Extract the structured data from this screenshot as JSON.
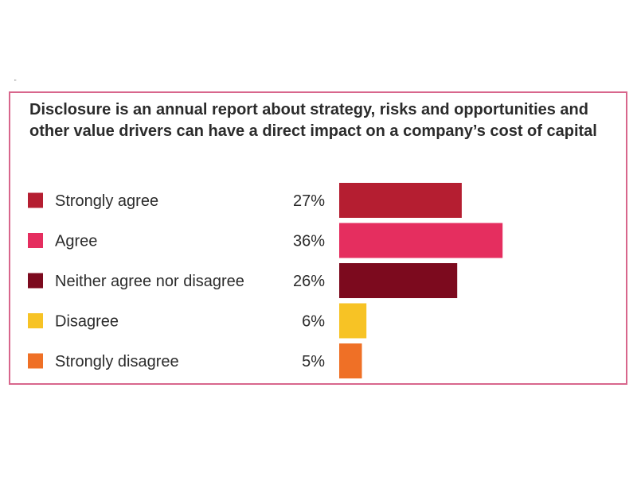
{
  "marker": "\"",
  "chart_data": {
    "type": "bar",
    "orientation": "horizontal",
    "title": "Disclosure is an annual report about strategy, risks and opportunities and other value drivers can have a direct impact on a company’s cost of capital",
    "categories": [
      "Strongly agree",
      "Agree",
      "Neither agree nor disagree",
      "Disagree",
      "Strongly disagree"
    ],
    "values": [
      27,
      36,
      26,
      6,
      5
    ],
    "value_labels": [
      "27%",
      "36%",
      "26%",
      "6%",
      "5%"
    ],
    "colors": [
      "#b51e31",
      "#e52e5f",
      "#7c0a1e",
      "#f7c325",
      "#ef7026"
    ],
    "unit": "%",
    "xlim": [
      0,
      100
    ],
    "grid": false,
    "legend": "left of bars, one swatch per row"
  }
}
